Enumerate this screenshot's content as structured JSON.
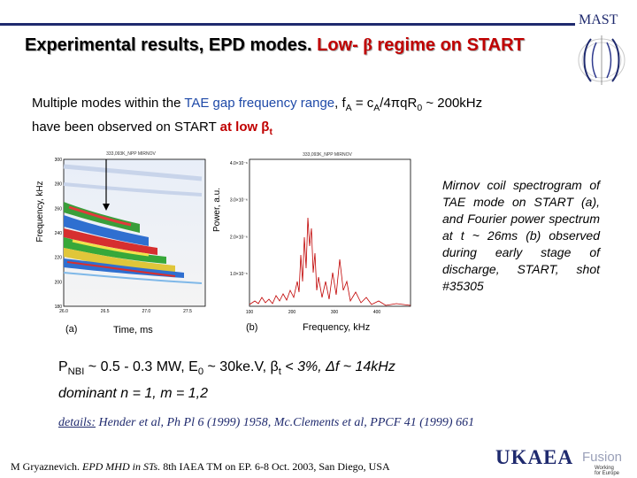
{
  "header": {
    "org_label": "MAST",
    "rule_color": "#1f2a6e"
  },
  "title": {
    "part1": "Experimental results, EPD modes.",
    "part2": " Low- ",
    "beta": "β",
    "part3": " regime on START"
  },
  "intro": {
    "t1": "Multiple modes within the ",
    "t2": "TAE gap frequency range",
    "t3": ", f",
    "t3_sub": "A",
    "t4": " = c",
    "t4_sub": "A",
    "t5": "/4πqR",
    "t5_sub": "0",
    "t6": " ~ 200kHz",
    "line2a": "have been observed on START ",
    "line2b": "at low β",
    "line2b_sub": "t"
  },
  "figure_a": {
    "header": "333,093K_NPP MIRNOV",
    "ylabel": "Frequency, kHz",
    "xlabel": "Time, ms",
    "panel_label": "(a)",
    "yticks": [
      "300",
      "280",
      "260",
      "240",
      "220",
      "200",
      "180"
    ],
    "xticks": [
      "26.0",
      "26.5",
      "27.0",
      "27.5"
    ]
  },
  "figure_b": {
    "header": "333,093K_NPP MIRNOV",
    "ylabel": "Power, a.u.",
    "xlabel": "Frequency, kHz",
    "panel_label": "(b)",
    "yticks": [
      "4.0×10⁻⁶",
      "3.0×10⁻⁶",
      "2.0×10⁻⁶",
      "1.0×10⁻⁶"
    ],
    "xticks": [
      "100",
      "200",
      "300",
      "400"
    ]
  },
  "caption": "Mirnov coil spectrogram of TAE mode on START (a), and Fourier power spectrum at t ~ 26ms (b) observed during early stage of discharge, START, shot #35305",
  "params": {
    "line1a": "P",
    "line1a_sub": "NBI",
    "line1b": " ~ 0.5 - 0.3 MW, E",
    "line1b_sub": "0",
    "line1c": " ~ 30ke.V, β",
    "line1c_sub": "t",
    "line1d": " < 3%, Δf ~ 14kHz",
    "line2": "dominant n = 1, m = 1,2"
  },
  "details": {
    "label": "details:",
    "text": " Hender et al, Ph Pl 6 (1999) 1958, Mc.Clements et al, PPCF 41 (1999) 661"
  },
  "footer": {
    "citation_a": "M Gryaznevich. ",
    "citation_b": "EPD MHD in STs.",
    "citation_c": " 8th IAEA TM on EP. 6-8 Oct. 2003, San Diego, USA",
    "logo_main": "UKAEA",
    "logo_fusion": "Fusion",
    "logo_tag1": "Working",
    "logo_tag2": "for Europe"
  }
}
